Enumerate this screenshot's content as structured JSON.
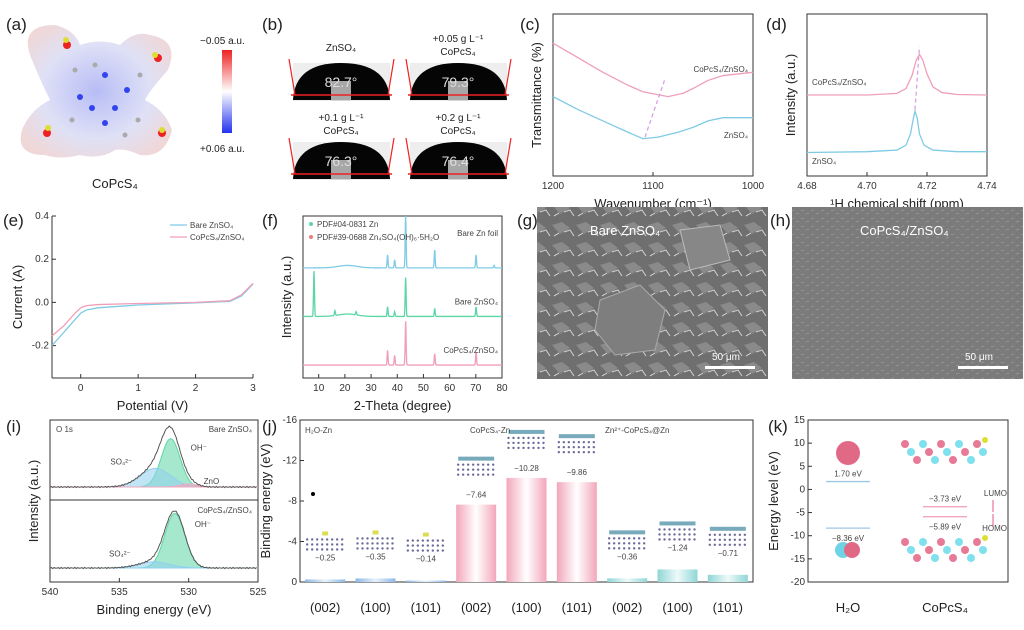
{
  "panels": {
    "a": {
      "label": "(a)",
      "molecule": "CoPcS₄",
      "scale_top": "−0.05 a.u.",
      "scale_bottom": "+0.06 a.u.",
      "scale_colors": [
        "#ee2222",
        "#ffffff",
        "#2233ee"
      ]
    },
    "b": {
      "label": "(b)",
      "images": [
        {
          "title1": "ZnSO₄",
          "title2": "",
          "angle": "82.7°"
        },
        {
          "title1": "+0.05 g L⁻¹",
          "title2": "CoPcS₄",
          "angle": "79.3°"
        },
        {
          "title1": "+0.1 g L⁻¹",
          "title2": "CoPcS₄",
          "angle": "76.3°"
        },
        {
          "title1": "+0.2 g L⁻¹",
          "title2": "CoPcS₄",
          "angle": "76.4°"
        }
      ]
    },
    "c": {
      "label": "(c)"
    },
    "d": {
      "label": "(d)"
    },
    "e": {
      "label": "(e)"
    },
    "f": {
      "label": "(f)"
    },
    "g": {
      "label": "(g)",
      "title": "Bare ZnSO₄",
      "scale_bar": "50 μm"
    },
    "h": {
      "label": "(h)",
      "title": "CoPcS₄/ZnSO₄",
      "scale_bar": "50 μm"
    },
    "i": {
      "label": "(i)"
    },
    "j": {
      "label": "(j)"
    },
    "k": {
      "label": "(k)"
    }
  },
  "colors": {
    "blue": "#7fcbe6",
    "pink": "#ef9fb7",
    "green": "#5dd6a6",
    "red": "#f07a7a",
    "dark": "#333333"
  },
  "chart_data": [
    {
      "id": "c",
      "type": "line",
      "xlabel": "Wavenumber (cm⁻¹)",
      "ylabel": "Transmittance (%)",
      "xlim": [
        1200,
        1000
      ],
      "ylim": [
        0,
        100
      ],
      "xticks": [
        "1200",
        "1100",
        "1000"
      ],
      "annotation": "peak shift arrow",
      "series": [
        {
          "name": "CoPcS₄/ZnSO₄",
          "color": "#ef9fb7",
          "points": [
            [
              1200,
              82
            ],
            [
              1175,
              73
            ],
            [
              1150,
              64
            ],
            [
              1125,
              56
            ],
            [
              1110,
              52
            ],
            [
              1085,
              49
            ],
            [
              1070,
              51
            ],
            [
              1060,
              54
            ],
            [
              1045,
              59
            ],
            [
              1030,
              62
            ],
            [
              1000,
              64
            ]
          ]
        },
        {
          "name": "ZnSO₄",
          "color": "#7fcbe6",
          "points": [
            [
              1200,
              49
            ],
            [
              1175,
              41
            ],
            [
              1150,
              34
            ],
            [
              1125,
              27
            ],
            [
              1110,
              23
            ],
            [
              1095,
              24
            ],
            [
              1075,
              27
            ],
            [
              1060,
              30
            ],
            [
              1045,
              34
            ],
            [
              1030,
              36
            ],
            [
              1000,
              36
            ]
          ]
        }
      ]
    },
    {
      "id": "d",
      "type": "line",
      "xlabel": "¹H chemical shift (ppm)",
      "ylabel": "Intensity (a.u.)",
      "xlim": [
        4.68,
        4.74
      ],
      "ylim": [
        0,
        100
      ],
      "xticks": [
        "4.68",
        "4.70",
        "4.72",
        "4.74"
      ],
      "annotation": "peak shift arrow",
      "series": [
        {
          "name": "CoPcS₄/ZnSO₄",
          "color": "#ef9fb7",
          "points": [
            [
              4.68,
              50
            ],
            [
              4.7,
              50
            ],
            [
              4.71,
              51
            ],
            [
              4.713,
              54
            ],
            [
              4.715,
              62
            ],
            [
              4.7165,
              72
            ],
            [
              4.7175,
              75
            ],
            [
              4.7185,
              72
            ],
            [
              4.72,
              63
            ],
            [
              4.722,
              55
            ],
            [
              4.725,
              51.5
            ],
            [
              4.73,
              50.3
            ],
            [
              4.74,
              50
            ]
          ]
        },
        {
          "name": "ZnSO₄",
          "color": "#7fcbe6",
          "points": [
            [
              4.68,
              14.5
            ],
            [
              4.7,
              15
            ],
            [
              4.71,
              16
            ],
            [
              4.713,
              19
            ],
            [
              4.7145,
              26
            ],
            [
              4.7155,
              36
            ],
            [
              4.716,
              40
            ],
            [
              4.7167,
              36
            ],
            [
              4.7175,
              26
            ],
            [
              4.719,
              19
            ],
            [
              4.722,
              16
            ],
            [
              4.73,
              15
            ],
            [
              4.74,
              15
            ]
          ]
        }
      ]
    },
    {
      "id": "e",
      "type": "line",
      "xlabel": "Potential (V)",
      "ylabel": "Current (A)",
      "xlim": [
        -0.5,
        3
      ],
      "ylim": [
        -0.35,
        0.4
      ],
      "xticks": [
        "0",
        "1",
        "2",
        "3"
      ],
      "yticks": [
        "0.4",
        "0.2",
        "0.0",
        "-0.2"
      ],
      "legend": "top-right",
      "series": [
        {
          "name": "Bare ZnSO₄",
          "color": "#7fcbe6",
          "points": [
            [
              -0.5,
              -0.2
            ],
            [
              -0.3,
              -0.14
            ],
            [
              -0.1,
              -0.08
            ],
            [
              0,
              -0.05
            ],
            [
              0.1,
              -0.035
            ],
            [
              0.3,
              -0.025
            ],
            [
              1,
              -0.012
            ],
            [
              2,
              -0.002
            ],
            [
              2.6,
              0.005
            ],
            [
              2.8,
              0.03
            ],
            [
              3,
              0.085
            ]
          ]
        },
        {
          "name": "CoPcS₄/ZnSO₄",
          "color": "#ef9fb7",
          "points": [
            [
              -0.5,
              -0.155
            ],
            [
              -0.3,
              -0.11
            ],
            [
              -0.1,
              -0.05
            ],
            [
              0,
              -0.025
            ],
            [
              0.1,
              -0.015
            ],
            [
              0.3,
              -0.01
            ],
            [
              1,
              -0.005
            ],
            [
              2,
              0
            ],
            [
              2.6,
              0.008
            ],
            [
              2.8,
              0.035
            ],
            [
              3,
              0.088
            ]
          ]
        }
      ]
    },
    {
      "id": "f",
      "type": "line",
      "xlabel": "2-Theta (degree)",
      "ylabel": "Intensity (a.u.)",
      "xlim": [
        4,
        80
      ],
      "ylim": [
        0,
        100
      ],
      "xticks": [
        "10",
        "20",
        "30",
        "40",
        "50",
        "60",
        "70",
        "80"
      ],
      "legend": [
        {
          "text": "PDF#04-0831 Zn",
          "color": "#5dd6a6"
        },
        {
          "text": "PDF#39-0688 Zn₄SO₄(OH)₆·5H₂O",
          "color": "#f07a7a"
        }
      ],
      "series": [
        {
          "name": "Bare Zn foil",
          "color": "#7fcbe6",
          "baseline": 68,
          "peaks": [
            [
              36.3,
              8
            ],
            [
              39,
              5
            ],
            [
              43.2,
              32
            ],
            [
              54.3,
              11
            ],
            [
              70.1,
              8
            ],
            [
              77,
              1.5
            ]
          ]
        },
        {
          "name": "Bare ZnSO₄",
          "color": "#5dd6a6",
          "baseline": 38,
          "peaks": [
            [
              8.2,
              28
            ],
            [
              16.2,
              3
            ],
            [
              24.3,
              2
            ],
            [
              36.3,
              6
            ],
            [
              39,
              3
            ],
            [
              43.2,
              24
            ],
            [
              54.3,
              5
            ],
            [
              70.1,
              6
            ]
          ]
        },
        {
          "name": "CoPcS₄/ZnSO₄",
          "color": "#ef9fb7",
          "baseline": 8,
          "peaks": [
            [
              36.3,
              9
            ],
            [
              39,
              6
            ],
            [
              43.2,
              27
            ],
            [
              54.3,
              7
            ],
            [
              70.1,
              8
            ]
          ]
        }
      ]
    },
    {
      "id": "i",
      "type": "area",
      "xlabel": "Binding energy (eV)",
      "ylabel": "Intensity (a.u.)",
      "xlim": [
        540,
        525
      ],
      "xticks": [
        "540",
        "535",
        "530",
        "525"
      ],
      "core_level": "O 1s",
      "panels": [
        {
          "name": "Bare ZnSO₄",
          "components": [
            {
              "label": "OH⁻",
              "center": 531.3,
              "height": 0.78,
              "fwhm": 1.6,
              "color": "#5dd6a6"
            },
            {
              "label": "SO₄²⁻",
              "center": 532.4,
              "height": 0.3,
              "fwhm": 2.6,
              "color": "#8fd0ef"
            },
            {
              "label": "ZnO",
              "center": 530.0,
              "height": 0.05,
              "fwhm": 1.4,
              "color": "#f3a6c0"
            }
          ]
        },
        {
          "name": "CoPcS₄/ZnSO₄",
          "components": [
            {
              "label": "OH⁻",
              "center": 531.0,
              "height": 0.88,
              "fwhm": 1.7,
              "color": "#5dd6a6"
            },
            {
              "label": "SO₄²⁻",
              "center": 532.5,
              "height": 0.1,
              "fwhm": 2.6,
              "color": "#8fd0ef"
            }
          ]
        }
      ]
    },
    {
      "id": "j",
      "type": "bar",
      "ylabel": "Binding energy (eV)",
      "ylim": [
        0,
        -16
      ],
      "yticks": [
        "-16",
        "-12",
        "-8",
        "-4",
        "0"
      ],
      "groups": [
        {
          "name": "H₂O-Zn",
          "color": "#8ab8e6"
        },
        {
          "name": "CoPcS₄-Zn",
          "color": "#f3a6bb"
        },
        {
          "name": "Zn²⁺-CoPcS₄@Zn",
          "color": "#8fd6d6"
        }
      ],
      "categories": [
        "(002)",
        "(100)",
        "(101)",
        "(002)",
        "(100)",
        "(101)",
        "(002)",
        "(100)",
        "(101)"
      ],
      "values": [
        -0.25,
        -0.35,
        -0.14,
        -7.64,
        -10.28,
        -9.86,
        -0.36,
        -1.24,
        -0.71
      ],
      "labels": [
        "−0.25",
        "−0.35",
        "−0.14",
        "−7.64",
        "−10.28",
        "−9.86",
        "−0.36",
        "−1.24",
        "−0.71"
      ],
      "group_index": [
        0,
        0,
        0,
        1,
        1,
        1,
        2,
        2,
        2
      ]
    },
    {
      "id": "k",
      "type": "level",
      "ylabel": "Energy level (eV)",
      "ylim": [
        -20,
        15
      ],
      "yticks": [
        "15",
        "10",
        "5",
        "0",
        "-5",
        "-10",
        "-15",
        "-20"
      ],
      "categories": [
        "H₂O",
        "CoPcS₄"
      ],
      "levels": [
        {
          "cat": 0,
          "value": 1.7,
          "label": "1.70 eV"
        },
        {
          "cat": 0,
          "value": -8.36,
          "label": "−8.36 eV"
        },
        {
          "cat": 1,
          "value": -3.73,
          "label": "−3.73 eV"
        },
        {
          "cat": 1,
          "value": -5.89,
          "label": "−5.89 eV"
        }
      ],
      "annotations": [
        "LUMO",
        "HOMO"
      ]
    }
  ]
}
